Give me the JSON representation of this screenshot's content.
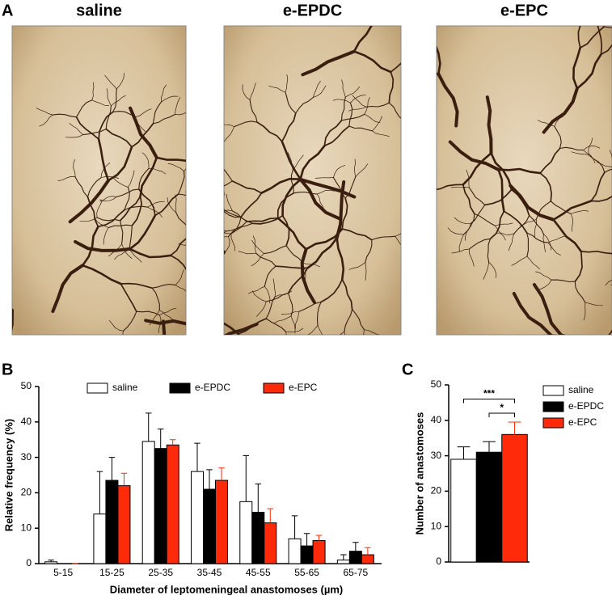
{
  "panel_labels": [
    "A",
    "B",
    "C"
  ],
  "images": [
    {
      "label": "saline"
    },
    {
      "label": "e-EPDC"
    },
    {
      "label": "e-EPC"
    }
  ],
  "chart_data": [
    {
      "type": "bar",
      "x_label": "Diameter of leptomeningeal anastomoses (µm)",
      "y_label": "Relative frequency (%)",
      "categories": [
        "5-15",
        "15-25",
        "25-35",
        "35-45",
        "45-55",
        "55-65",
        "65-75"
      ],
      "series": [
        {
          "name": "saline",
          "color": "#ffffff",
          "values": [
            0.5,
            14,
            34.5,
            26,
            17.5,
            7,
            1
          ],
          "errors": [
            0.5,
            12,
            8,
            8,
            13,
            6.5,
            1.5
          ]
        },
        {
          "name": "e-EPDC",
          "color": "#000000",
          "values": [
            0,
            23.5,
            32.5,
            21,
            14.5,
            5,
            3.5
          ],
          "errors": [
            0,
            6.5,
            5.5,
            5.5,
            8,
            3.5,
            2.5
          ]
        },
        {
          "name": "e-EPC",
          "color": "#ff2a0a",
          "values": [
            0,
            22,
            33.5,
            23.5,
            11.5,
            6.5,
            2.5
          ],
          "errors": [
            0,
            3.5,
            1.5,
            3.5,
            4,
            1.5,
            2
          ]
        }
      ],
      "ylim": [
        0,
        50
      ],
      "yticks": [
        0,
        10,
        20,
        30,
        40,
        50
      ],
      "legend": "top"
    },
    {
      "type": "bar",
      "y_label": "Number of anastomoses",
      "categories": [
        null
      ],
      "series": [
        {
          "name": "saline",
          "color": "#ffffff",
          "values": [
            29
          ],
          "errors": [
            3.5
          ]
        },
        {
          "name": "e-EPDC",
          "color": "#000000",
          "values": [
            31
          ],
          "errors": [
            3
          ]
        },
        {
          "name": "e-EPC",
          "color": "#ff2a0a",
          "values": [
            36
          ],
          "errors": [
            3.5
          ]
        }
      ],
      "ylim": [
        0,
        50
      ],
      "yticks": [
        0,
        10,
        20,
        30,
        40,
        50
      ],
      "legend": "right",
      "annotations": [
        {
          "text": "***"
        },
        {
          "text": "*"
        }
      ]
    }
  ]
}
